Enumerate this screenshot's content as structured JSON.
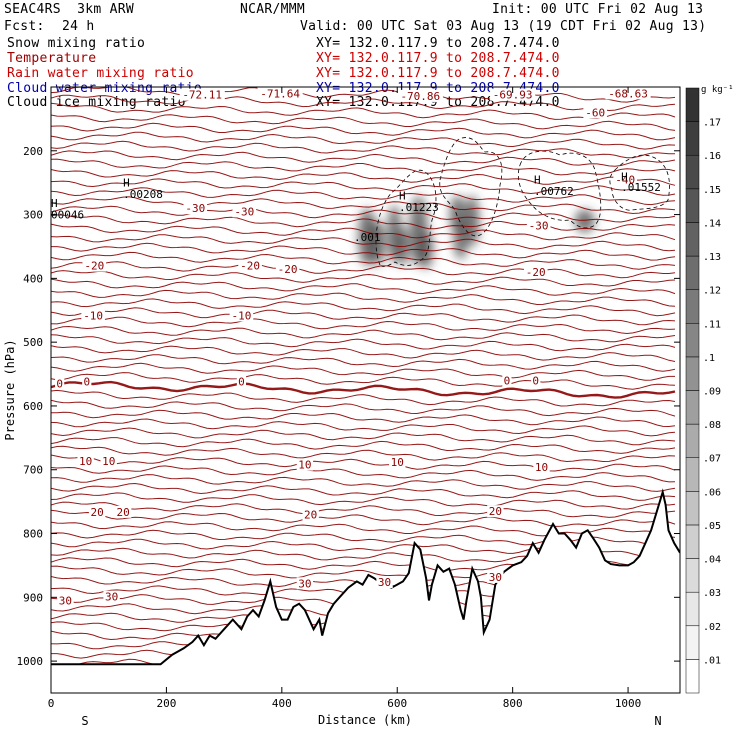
{
  "header": {
    "model": "SEAC4RS  3km ARW",
    "fcst_label": "Fcst:",
    "fcst_value": "24 h",
    "center": "NCAR/MMM",
    "init": "Init: 00 UTC Fri 02 Aug 13",
    "valid": "Valid: 00 UTC Sat 03 Aug 13 (19 CDT Fri 02 Aug 13)"
  },
  "fields": [
    {
      "name": "Snow mixing ratio",
      "xy": "XY= 132.0.117.9 to 208.7.474.0",
      "color": "#000000",
      "xy_color": "#000000"
    },
    {
      "name": "Temperature",
      "xy": "XY= 132.0.117.9 to 208.7.474.0",
      "color": "#a00000",
      "xy_color": "#cc0000"
    },
    {
      "name": "Rain water mixing ratio",
      "xy": "XY= 132.0.117.9 to 208.7.474.0",
      "color": "#cc0000",
      "xy_color": "#cc0000"
    },
    {
      "name": "Cloud water mixing ratio",
      "xy": "XY= 132.0.117.9 to 208.7.474.0",
      "color": "#0000aa",
      "xy_color": "#0000aa"
    },
    {
      "name": "Cloud ice mixing ratio",
      "xy": "XY= 132.0.117.9 to 208.7.474.0",
      "color": "#000000",
      "xy_color": "#000000"
    }
  ],
  "chart_data": {
    "type": "cross-section",
    "xlabel": "Distance (km)",
    "ylabel": "Pressure (hPa)",
    "x_ticks": [
      0,
      200,
      400,
      600,
      800,
      1000
    ],
    "y_ticks": [
      200,
      300,
      400,
      500,
      600,
      700,
      800,
      900,
      1000
    ],
    "x_range": [
      0,
      1090
    ],
    "y_range": [
      100,
      1050
    ],
    "left_end": "S",
    "right_end": "N",
    "colorbar": {
      "unit": "g kg⁻¹",
      "ticks": [
        ".01",
        ".02",
        ".03",
        ".04",
        ".05",
        ".06",
        ".07",
        ".08",
        ".09",
        ".1",
        ".11",
        ".12",
        ".13",
        ".14",
        ".15",
        ".16",
        ".17"
      ]
    },
    "isotherm_labels": [
      {
        "text": "-72.11",
        "x": 262,
        "p": 112
      },
      {
        "text": "-71.64",
        "x": 397,
        "p": 110
      },
      {
        "text": "-70.86",
        "x": 640,
        "p": 114
      },
      {
        "text": "-69.93",
        "x": 800,
        "p": 112
      },
      {
        "text": "-68.63",
        "x": 1000,
        "p": 110
      },
      {
        "text": "-60",
        "x": 943,
        "p": 140
      },
      {
        "text": "-40",
        "x": 995,
        "p": 245
      },
      {
        "text": "-30",
        "x": 250,
        "p": 290
      },
      {
        "text": "-30",
        "x": 335,
        "p": 295
      },
      {
        "text": "-30",
        "x": 845,
        "p": 317
      },
      {
        "text": "-20",
        "x": 75,
        "p": 380
      },
      {
        "text": "-20",
        "x": 345,
        "p": 380
      },
      {
        "text": "-20",
        "x": 410,
        "p": 385
      },
      {
        "text": "-20",
        "x": 840,
        "p": 390
      },
      {
        "text": "-10",
        "x": 73,
        "p": 458
      },
      {
        "text": "-10",
        "x": 330,
        "p": 458
      },
      {
        "text": "0",
        "x": 15,
        "p": 565
      },
      {
        "text": "0",
        "x": 62,
        "p": 562
      },
      {
        "text": "0",
        "x": 330,
        "p": 562
      },
      {
        "text": "0",
        "x": 790,
        "p": 560
      },
      {
        "text": "0",
        "x": 840,
        "p": 560
      },
      {
        "text": "10",
        "x": 60,
        "p": 686
      },
      {
        "text": "10",
        "x": 100,
        "p": 686
      },
      {
        "text": "10",
        "x": 440,
        "p": 692
      },
      {
        "text": "10",
        "x": 600,
        "p": 688
      },
      {
        "text": "10",
        "x": 850,
        "p": 696
      },
      {
        "text": "20",
        "x": 80,
        "p": 766
      },
      {
        "text": "20",
        "x": 125,
        "p": 766
      },
      {
        "text": "20",
        "x": 450,
        "p": 770
      },
      {
        "text": "20",
        "x": 770,
        "p": 765
      },
      {
        "text": "30",
        "x": 25,
        "p": 905
      },
      {
        "text": "30",
        "x": 105,
        "p": 899
      },
      {
        "text": "30",
        "x": 440,
        "p": 878
      },
      {
        "text": "30",
        "x": 578,
        "p": 876
      },
      {
        "text": "30",
        "x": 770,
        "p": 868
      }
    ],
    "max_labels": [
      {
        "h": "H",
        "value": "00046",
        "x": 0,
        "p": 300,
        "hx": 0,
        "hp": 282
      },
      {
        "h": "H",
        "value": ".00208",
        "x": 125,
        "p": 268,
        "hx": 125,
        "hp": 250
      },
      {
        "h": "H",
        "value": ".01223",
        "x": 603,
        "p": 288,
        "hx": 603,
        "hp": 270
      },
      {
        "h": "H",
        "value": ".00762",
        "x": 837,
        "p": 263,
        "hx": 837,
        "hp": 245
      },
      {
        "h": "H",
        "value": ".01552",
        "x": 988,
        "p": 257,
        "hx": 988,
        "hp": 240
      },
      {
        "h": "",
        "value": ".001",
        "x": 525,
        "p": 335,
        "hx": 0,
        "hp": 0
      }
    ],
    "terrain": [
      [
        0,
        1005
      ],
      [
        190,
        1005
      ],
      [
        210,
        990
      ],
      [
        230,
        980
      ],
      [
        245,
        970
      ],
      [
        255,
        960
      ],
      [
        265,
        975
      ],
      [
        275,
        960
      ],
      [
        285,
        965
      ],
      [
        300,
        950
      ],
      [
        315,
        935
      ],
      [
        330,
        950
      ],
      [
        340,
        930
      ],
      [
        350,
        920
      ],
      [
        360,
        930
      ],
      [
        370,
        905
      ],
      [
        380,
        875
      ],
      [
        390,
        915
      ],
      [
        400,
        935
      ],
      [
        410,
        935
      ],
      [
        420,
        915
      ],
      [
        430,
        910
      ],
      [
        440,
        920
      ],
      [
        455,
        950
      ],
      [
        465,
        935
      ],
      [
        470,
        960
      ],
      [
        480,
        925
      ],
      [
        490,
        910
      ],
      [
        500,
        900
      ],
      [
        515,
        885
      ],
      [
        530,
        875
      ],
      [
        540,
        880
      ],
      [
        550,
        865
      ],
      [
        560,
        870
      ],
      [
        575,
        880
      ],
      [
        590,
        885
      ],
      [
        600,
        880
      ],
      [
        610,
        875
      ],
      [
        620,
        862
      ],
      [
        630,
        815
      ],
      [
        640,
        825
      ],
      [
        650,
        870
      ],
      [
        655,
        905
      ],
      [
        660,
        880
      ],
      [
        670,
        850
      ],
      [
        680,
        860
      ],
      [
        690,
        855
      ],
      [
        700,
        880
      ],
      [
        710,
        920
      ],
      [
        715,
        935
      ],
      [
        720,
        905
      ],
      [
        730,
        855
      ],
      [
        740,
        875
      ],
      [
        745,
        900
      ],
      [
        750,
        955
      ],
      [
        760,
        935
      ],
      [
        770,
        880
      ],
      [
        785,
        860
      ],
      [
        800,
        850
      ],
      [
        815,
        845
      ],
      [
        825,
        835
      ],
      [
        835,
        815
      ],
      [
        845,
        830
      ],
      [
        855,
        810
      ],
      [
        870,
        785
      ],
      [
        880,
        800
      ],
      [
        890,
        800
      ],
      [
        900,
        810
      ],
      [
        910,
        822
      ],
      [
        920,
        800
      ],
      [
        930,
        795
      ],
      [
        940,
        808
      ],
      [
        950,
        822
      ],
      [
        960,
        842
      ],
      [
        970,
        848
      ],
      [
        985,
        850
      ],
      [
        1000,
        850
      ],
      [
        1010,
        845
      ],
      [
        1020,
        835
      ],
      [
        1030,
        815
      ],
      [
        1040,
        795
      ],
      [
        1050,
        765
      ],
      [
        1060,
        735
      ],
      [
        1065,
        755
      ],
      [
        1070,
        795
      ],
      [
        1080,
        815
      ],
      [
        1090,
        830
      ]
    ],
    "snow_blobs": [
      {
        "x": 548,
        "p": 335,
        "w": 9,
        "h": 45
      },
      {
        "x": 565,
        "p": 345,
        "w": 8,
        "h": 35
      },
      {
        "x": 595,
        "p": 330,
        "w": 7,
        "h": 45
      },
      {
        "x": 610,
        "p": 350,
        "w": 6,
        "h": 30
      },
      {
        "x": 637,
        "p": 325,
        "w": 9,
        "h": 55
      },
      {
        "x": 650,
        "p": 355,
        "w": 7,
        "h": 30
      },
      {
        "x": 705,
        "p": 300,
        "w": 8,
        "h": 30
      },
      {
        "x": 710,
        "p": 340,
        "w": 7,
        "h": 30
      },
      {
        "x": 730,
        "p": 310,
        "w": 7,
        "h": 40
      },
      {
        "x": 925,
        "p": 310,
        "w": 10,
        "h": 18
      }
    ]
  }
}
